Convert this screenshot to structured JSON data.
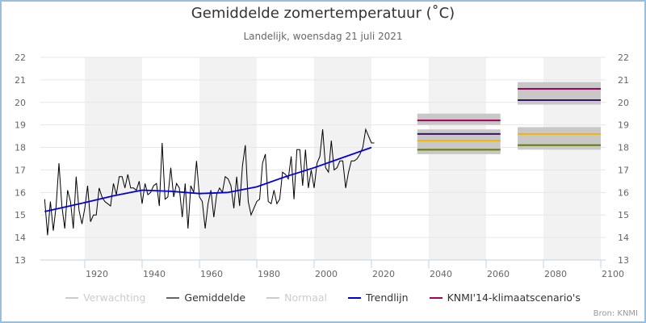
{
  "header": {
    "title": "Gemiddelde zomertemperatuur (˚C)",
    "subtitle": "Landelijk, woensdag 21 juli 2021"
  },
  "source": "Bron: KNMI",
  "colors": {
    "gemiddelde": "#000000",
    "trendlijn": "#0000dd",
    "scenario_band": "#c8c8c8",
    "scenario_magenta": "#a8005a",
    "scenario_purple": "#3a1060",
    "scenario_orange": "#f5b400",
    "scenario_olive": "#6b7a00",
    "alt_band": "#f2f2f2",
    "grid": "#e6e6e6",
    "legend_inactive": "#cccccc"
  },
  "legend": [
    {
      "label": "Verwachting",
      "color": "#cccccc",
      "active": false
    },
    {
      "label": "Gemiddelde",
      "color": "#666666",
      "active": true
    },
    {
      "label": "Normaal",
      "color": "#cccccc",
      "active": false
    },
    {
      "label": "Trendlijn",
      "color": "#0000dd",
      "active": true
    },
    {
      "label": "KNMI'14-klimaatscenario's",
      "color": "#a8005a",
      "active": true
    }
  ],
  "chart_data": {
    "type": "line",
    "title": "Gemiddelde zomertemperatuur (˚C)",
    "subtitle": "Landelijk, woensdag 21 juli 2021",
    "xlabel": "",
    "ylabel": "",
    "xlim": [
      1904.5,
      2102.5
    ],
    "ylim": [
      13,
      22
    ],
    "x_ticks": [
      1920,
      1940,
      1960,
      1980,
      2000,
      2020,
      2040,
      2060,
      2080,
      2100
    ],
    "y_ticks": [
      13,
      14,
      15,
      16,
      17,
      18,
      19,
      20,
      21,
      22
    ],
    "y_axis_both_sides": true,
    "grid": true,
    "alternate_bands": [
      [
        1920,
        1940
      ],
      [
        1960,
        1980
      ],
      [
        2000,
        2020
      ],
      [
        2040,
        2060
      ],
      [
        2080,
        2100
      ]
    ],
    "legend_position": "bottom",
    "series": [
      {
        "name": "Gemiddelde",
        "start_year": 1906,
        "values": [
          15.7,
          14.1,
          15.6,
          14.3,
          15.4,
          17.3,
          15.4,
          14.4,
          16.1,
          15.6,
          14.4,
          16.7,
          15.2,
          14.6,
          15.3,
          16.3,
          14.7,
          15.0,
          15.0,
          16.2,
          15.8,
          15.6,
          15.5,
          15.4,
          16.4,
          15.9,
          16.7,
          16.7,
          16.2,
          16.8,
          16.2,
          16.2,
          16.1,
          16.5,
          15.5,
          16.4,
          15.9,
          16.0,
          16.3,
          16.4,
          15.4,
          18.2,
          15.7,
          15.8,
          17.1,
          15.8,
          16.4,
          16.2,
          14.9,
          16.4,
          14.4,
          16.3,
          16.0,
          17.4,
          15.8,
          15.6,
          14.4,
          15.5,
          16.1,
          14.9,
          15.9,
          16.2,
          16.0,
          16.7,
          16.6,
          16.3,
          15.3,
          16.7,
          15.4,
          17.2,
          18.1,
          15.6,
          15.0,
          15.3,
          15.6,
          15.7,
          17.3,
          17.7,
          15.6,
          15.5,
          16.1,
          15.5,
          15.7,
          16.9,
          16.8,
          16.6,
          17.6,
          15.7,
          17.9,
          17.9,
          16.3,
          17.9,
          16.2,
          17.0,
          16.2,
          17.3,
          17.6,
          18.8,
          17.1,
          16.9,
          18.3,
          17.0,
          17.1,
          17.4,
          17.4,
          16.2,
          16.9,
          17.4,
          17.4,
          17.5,
          17.7,
          18.0,
          18.8,
          18.5,
          18.2,
          18.2
        ]
      },
      {
        "name": "Trendlijn",
        "x": [
          1906,
          1920,
          1930,
          1940,
          1950,
          1960,
          1970,
          1980,
          1990,
          2000,
          2010,
          2020
        ],
        "values": [
          15.15,
          15.55,
          15.85,
          16.1,
          16.05,
          15.95,
          16.0,
          16.25,
          16.7,
          17.1,
          17.55,
          18.0
        ]
      }
    ],
    "scenarios": [
      {
        "period": [
          2036,
          2065
        ],
        "bands": [
          [
            19.0,
            19.5
          ],
          [
            17.7,
            18.8
          ]
        ],
        "lines": [
          {
            "name": "scenario-high-wet",
            "value": 19.2,
            "color": "#a8005a"
          },
          {
            "name": "scenario-high-dry",
            "value": 18.6,
            "color": "#3a1060"
          },
          {
            "name": "scenario-moderate-wet",
            "value": 18.3,
            "color": "#f5b400"
          },
          {
            "name": "scenario-moderate-dry",
            "value": 17.9,
            "color": "#6b7a00"
          }
        ]
      },
      {
        "period": [
          2071,
          2100
        ],
        "bands": [
          [
            19.9,
            20.9
          ],
          [
            17.9,
            18.9
          ]
        ],
        "lines": [
          {
            "name": "scenario-high-wet",
            "value": 20.6,
            "color": "#a8005a"
          },
          {
            "name": "scenario-high-dry",
            "value": 20.1,
            "color": "#3a1060"
          },
          {
            "name": "scenario-moderate-wet",
            "value": 18.6,
            "color": "#f5b400"
          },
          {
            "name": "scenario-moderate-dry",
            "value": 18.1,
            "color": "#6b7a00"
          }
        ]
      }
    ]
  }
}
